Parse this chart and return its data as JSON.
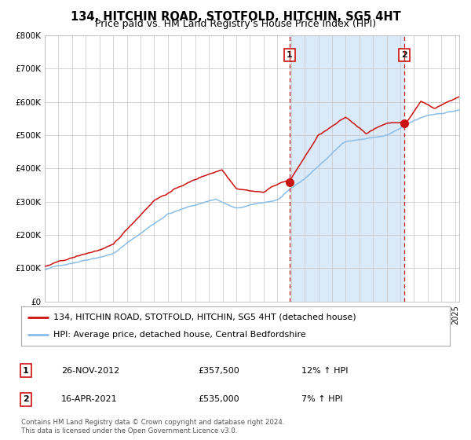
{
  "title": "134, HITCHIN ROAD, STOTFOLD, HITCHIN, SG5 4HT",
  "subtitle": "Price paid vs. HM Land Registry's House Price Index (HPI)",
  "ylabel_ticks": [
    "£0",
    "£100K",
    "£200K",
    "£300K",
    "£400K",
    "£500K",
    "£600K",
    "£700K",
    "£800K"
  ],
  "ylim": [
    0,
    800000
  ],
  "xlim_start": 1995.0,
  "xlim_end": 2025.3,
  "hpi_color": "#8abde8",
  "property_color": "#cc1111",
  "bg_color": "#ffffff",
  "shaded_region_color": "#daeaf8",
  "grid_color": "#cccccc",
  "marker1_x": 2012.9,
  "marker1_y": 357500,
  "marker2_x": 2021.29,
  "marker2_y": 535000,
  "legend_property": "134, HITCHIN ROAD, STOTFOLD, HITCHIN, SG5 4HT (detached house)",
  "legend_hpi": "HPI: Average price, detached house, Central Bedfordshire",
  "table_rows": [
    {
      "num": "1",
      "date": "26-NOV-2012",
      "price": "£357,500",
      "hpi": "12% ↑ HPI"
    },
    {
      "num": "2",
      "date": "16-APR-2021",
      "price": "£535,000",
      "hpi": "7% ↑ HPI"
    }
  ],
  "footer": "Contains HM Land Registry data © Crown copyright and database right 2024.\nThis data is licensed under the Open Government Licence v3.0.",
  "title_fontsize": 10.5,
  "subtitle_fontsize": 9.0
}
